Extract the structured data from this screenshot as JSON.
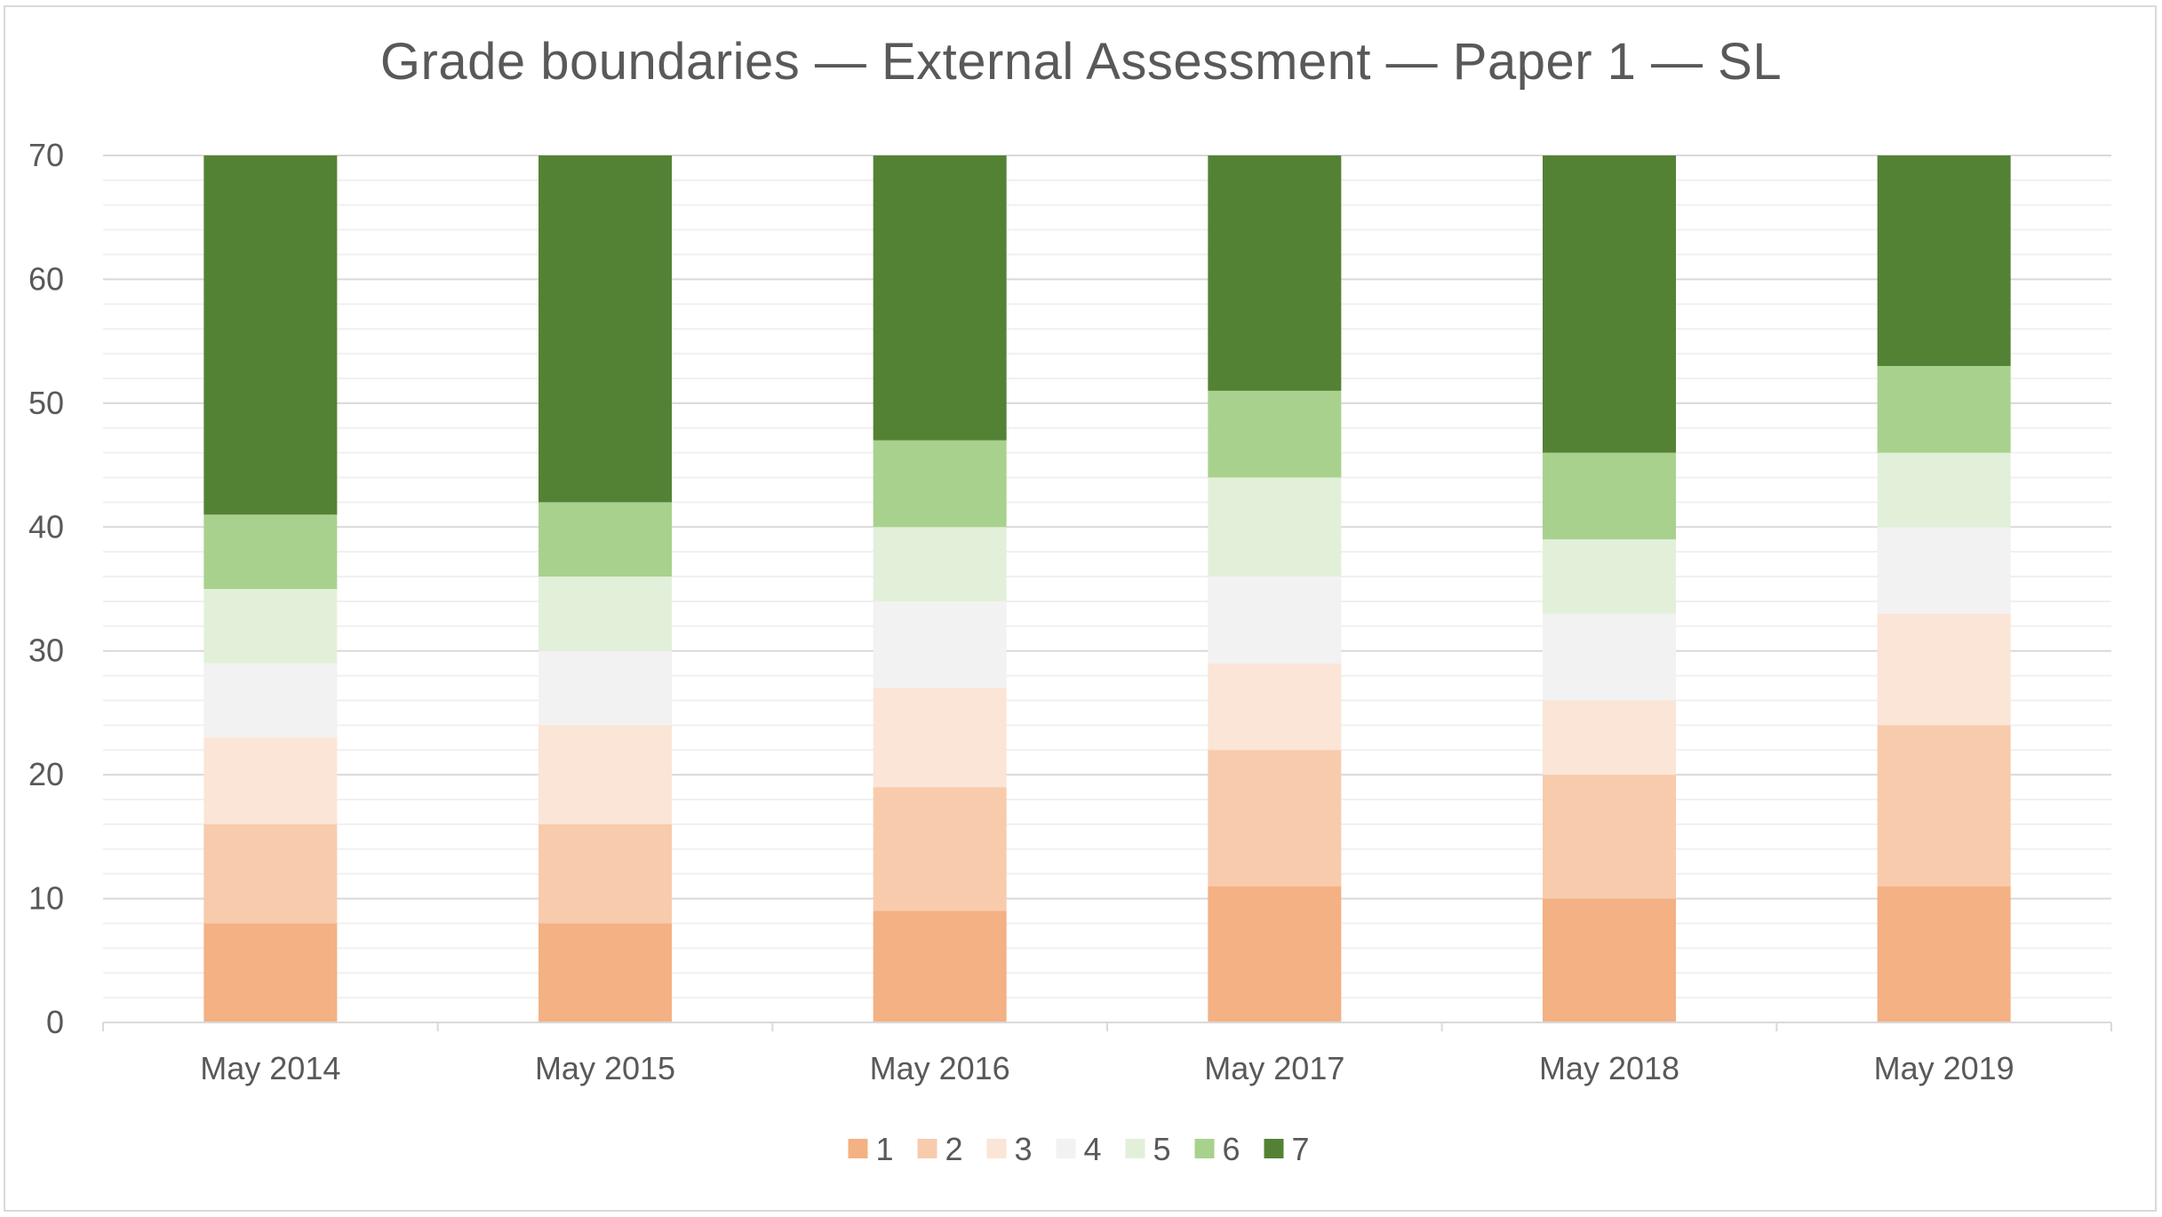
{
  "chart_data": {
    "type": "bar",
    "stacked": true,
    "title": "Grade boundaries — External Assessment — Paper 1 — SL",
    "xlabel": "",
    "ylabel": "",
    "ylim": [
      0,
      70
    ],
    "yticks": [
      0,
      10,
      20,
      30,
      40,
      50,
      60,
      70
    ],
    "grid": true,
    "legend_position": "bottom",
    "categories": [
      "May 2014",
      "May 2015",
      "May 2016",
      "May 2017",
      "May 2018",
      "May 2019"
    ],
    "series": [
      {
        "name": "1",
        "color": "#f4b183",
        "values": [
          8,
          8,
          9,
          11,
          10,
          11
        ]
      },
      {
        "name": "2",
        "color": "#f8cbad",
        "values": [
          8,
          8,
          10,
          11,
          10,
          13
        ]
      },
      {
        "name": "3",
        "color": "#fbe5d6",
        "values": [
          7,
          8,
          8,
          7,
          6,
          9
        ]
      },
      {
        "name": "4",
        "color": "#f2f2f2",
        "values": [
          6,
          6,
          7,
          7,
          7,
          7
        ]
      },
      {
        "name": "5",
        "color": "#e2f0d9",
        "values": [
          6,
          6,
          6,
          8,
          6,
          6
        ]
      },
      {
        "name": "6",
        "color": "#a9d18e",
        "values": [
          6,
          6,
          7,
          7,
          7,
          7
        ]
      },
      {
        "name": "7",
        "color": "#548235",
        "values": [
          29,
          28,
          23,
          19,
          24,
          17
        ]
      }
    ]
  }
}
